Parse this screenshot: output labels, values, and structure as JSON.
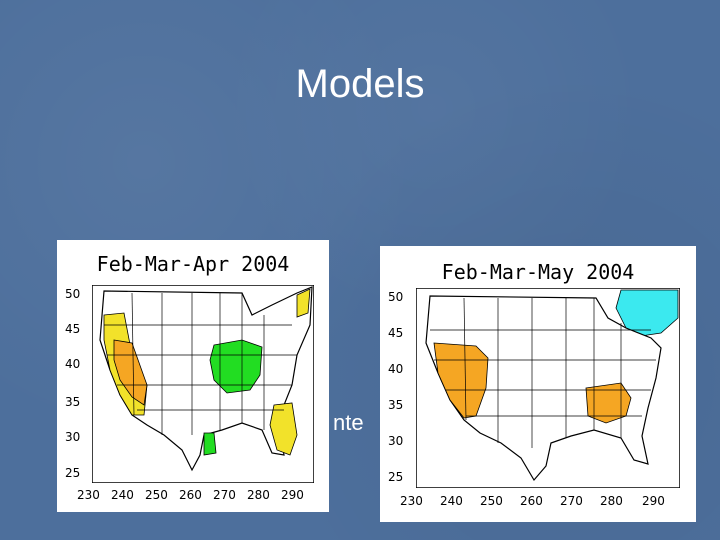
{
  "slide": {
    "title": "Models",
    "bullets": [
      {
        "text": "nte"
      },
      {
        "text": ""
      }
    ]
  },
  "maps": [
    {
      "title": "Feb-Mar-Apr 2004",
      "y_ticks": [
        "50",
        "45",
        "40",
        "35",
        "30",
        "25"
      ],
      "x_ticks": [
        "230",
        "240",
        "250",
        "260",
        "270",
        "280",
        "290"
      ]
    },
    {
      "title": "Feb-Mar-May 2004",
      "y_ticks": [
        "50",
        "45",
        "40",
        "35",
        "30",
        "25"
      ],
      "x_ticks": [
        "230",
        "240",
        "250",
        "260",
        "270",
        "280",
        "290"
      ]
    }
  ],
  "colors": {
    "background": "#4d6f9c",
    "orange": "#f5a623",
    "yellow": "#f2e22a",
    "green": "#22dd22",
    "cyan": "#3be9ef"
  }
}
